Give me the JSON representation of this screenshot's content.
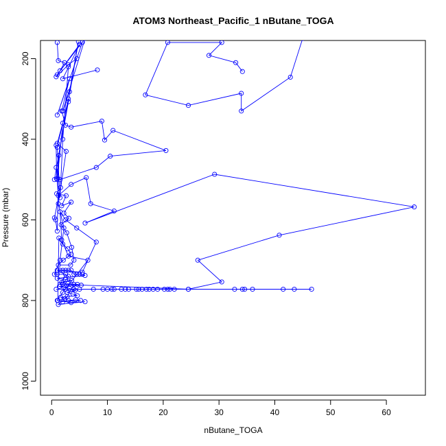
{
  "chart_data": {
    "type": "line",
    "title": "ATOM3 Northeast_Pacific_1 nButane_TOGA",
    "xlabel": "nButane_TOGA",
    "ylabel": "Pressure (mbar)",
    "xlim": [
      -2,
      67
    ],
    "ylim": [
      1035,
      155
    ],
    "y_reversed": true,
    "x_ticks": [
      0,
      10,
      20,
      30,
      40,
      50,
      60
    ],
    "y_ticks": [
      200,
      400,
      600,
      800,
      1000
    ],
    "grid": false,
    "color": "#0000ff",
    "marker": "open-circle",
    "series": [
      {
        "points": [
          [
            1.0,
            160
          ],
          [
            1.2,
            205
          ],
          [
            2.3,
            210
          ],
          [
            1.5,
            230
          ],
          [
            0.8,
            245
          ],
          [
            3.0,
            215
          ],
          [
            4.5,
            200
          ],
          [
            5.5,
            160
          ],
          [
            1.0,
            340
          ],
          [
            3.2,
            250
          ],
          [
            1.8,
            330
          ],
          [
            2.5,
            365
          ],
          [
            3.5,
            370
          ],
          [
            9.0,
            355
          ],
          [
            9.5,
            402
          ],
          [
            11.0,
            378
          ],
          [
            20.5,
            428
          ],
          [
            10.5,
            442
          ],
          [
            8.0,
            470
          ],
          [
            1.5,
            500
          ],
          [
            0.8,
            470
          ],
          [
            1.2,
            540
          ],
          [
            3.5,
            512
          ],
          [
            6.2,
            495
          ],
          [
            7.0,
            560
          ],
          [
            11.2,
            578
          ],
          [
            6.0,
            608
          ],
          [
            29.2,
            487
          ],
          [
            65.0,
            568
          ],
          [
            40.8,
            638
          ],
          [
            26.2,
            700
          ],
          [
            30.5,
            754
          ],
          [
            24.5,
            772
          ],
          [
            2.0,
            760
          ],
          [
            3.0,
            740
          ],
          [
            1.0,
            725
          ],
          [
            5.5,
            730
          ],
          [
            8.0,
            655
          ],
          [
            4.5,
            620
          ],
          [
            2.5,
            600
          ],
          [
            1.5,
            580
          ],
          [
            1.8,
            650
          ],
          [
            3.0,
            690
          ],
          [
            6.5,
            700
          ],
          [
            2.0,
            780
          ],
          [
            1.0,
            800
          ],
          [
            3.5,
            805
          ],
          [
            6.0,
            803
          ],
          [
            1.2,
            810
          ],
          [
            2.8,
            790
          ],
          [
            4.0,
            760
          ],
          [
            1.5,
            760
          ],
          [
            2.5,
            735
          ],
          [
            1.0,
            735
          ],
          [
            0.5,
            735
          ],
          [
            1.5,
            700
          ],
          [
            2.2,
            620
          ],
          [
            1.2,
            560
          ],
          [
            2.6,
            430
          ],
          [
            1.0,
            410
          ],
          [
            2.0,
            360
          ],
          [
            1.0,
            500
          ]
        ]
      },
      {
        "points": [
          [
            0.8,
            772
          ],
          [
            2.5,
            772
          ],
          [
            4.0,
            772
          ],
          [
            5.0,
            772
          ],
          [
            7.5,
            772
          ],
          [
            9.2,
            772
          ],
          [
            10.0,
            772
          ],
          [
            10.8,
            772
          ],
          [
            11.2,
            772
          ],
          [
            12.5,
            772
          ],
          [
            13.2,
            772
          ],
          [
            13.8,
            772
          ],
          [
            15.2,
            772
          ],
          [
            15.6,
            772
          ],
          [
            16.2,
            772
          ],
          [
            17.0,
            772
          ],
          [
            17.5,
            772
          ],
          [
            18.2,
            772
          ],
          [
            19.0,
            772
          ],
          [
            20.2,
            772
          ],
          [
            20.8,
            772
          ],
          [
            21.2,
            772
          ],
          [
            22.0,
            772
          ],
          [
            24.5,
            772
          ],
          [
            32.8,
            772
          ],
          [
            34.2,
            772
          ],
          [
            34.6,
            772
          ],
          [
            36.0,
            772
          ],
          [
            41.5,
            772
          ],
          [
            43.5,
            772
          ],
          [
            46.6,
            772
          ]
        ]
      },
      {
        "points": [
          [
            34.2,
            232
          ],
          [
            33.0,
            210
          ],
          [
            28.2,
            192
          ],
          [
            30.5,
            160
          ],
          [
            20.8,
            160
          ],
          [
            16.8,
            290
          ],
          [
            24.5,
            316
          ],
          [
            34.0,
            286
          ],
          [
            34.0,
            330
          ],
          [
            42.8,
            246
          ],
          [
            45.0,
            150
          ]
        ]
      },
      {
        "points": [
          [
            8.2,
            228
          ],
          [
            2.0,
            250
          ],
          [
            5.0,
            165
          ],
          [
            1.0,
            240
          ],
          [
            6.0,
            150
          ],
          [
            2.0,
            330
          ],
          [
            3.2,
            282
          ],
          [
            4.8,
            158
          ],
          [
            3.0,
            307
          ],
          [
            0.5,
            500
          ],
          [
            3.0,
            300
          ],
          [
            1.0,
            420
          ],
          [
            1.5,
            545
          ],
          [
            2.0,
            400
          ],
          [
            3.0,
            220
          ]
        ]
      },
      {
        "points": [
          [
            1.0,
            725
          ],
          [
            1.5,
            725
          ],
          [
            2.0,
            725
          ],
          [
            2.5,
            725
          ],
          [
            3.0,
            725
          ],
          [
            3.5,
            725
          ],
          [
            4.0,
            735
          ],
          [
            4.5,
            735
          ],
          [
            5.0,
            735
          ],
          [
            5.5,
            735
          ],
          [
            6.0,
            738
          ],
          [
            1.0,
            745
          ],
          [
            2.5,
            748
          ],
          [
            3.6,
            750
          ],
          [
            1.8,
            755
          ],
          [
            2.9,
            758
          ],
          [
            4.6,
            760
          ],
          [
            5.3,
            762
          ],
          [
            1.4,
            765
          ],
          [
            2.2,
            768
          ],
          [
            3.2,
            770
          ],
          [
            4.2,
            775
          ],
          [
            2.8,
            780
          ],
          [
            3.8,
            784
          ],
          [
            4.6,
            788
          ],
          [
            1.6,
            792
          ],
          [
            2.4,
            796
          ],
          [
            3.0,
            800
          ],
          [
            4.3,
            798
          ],
          [
            5.2,
            800
          ],
          [
            2.0,
            803
          ],
          [
            1.1,
            800
          ],
          [
            1.3,
            645
          ],
          [
            2.0,
            660
          ],
          [
            2.9,
            672
          ],
          [
            3.5,
            685
          ],
          [
            2.1,
            700
          ],
          [
            1.2,
            712
          ],
          [
            3.4,
            712
          ],
          [
            4.0,
            700
          ],
          [
            3.6,
            668
          ],
          [
            2.7,
            632
          ],
          [
            1.7,
            612
          ],
          [
            3.1,
            596
          ],
          [
            2.2,
            583
          ],
          [
            3.5,
            556
          ],
          [
            1.8,
            565
          ],
          [
            2.6,
            540
          ],
          [
            0.9,
            535
          ],
          [
            1.6,
            520
          ],
          [
            0.5,
            595
          ],
          [
            0.7,
            600
          ],
          [
            1.0,
            628
          ],
          [
            1.3,
            440
          ],
          [
            0.9,
            498
          ],
          [
            0.8,
            415
          ]
        ]
      }
    ]
  }
}
